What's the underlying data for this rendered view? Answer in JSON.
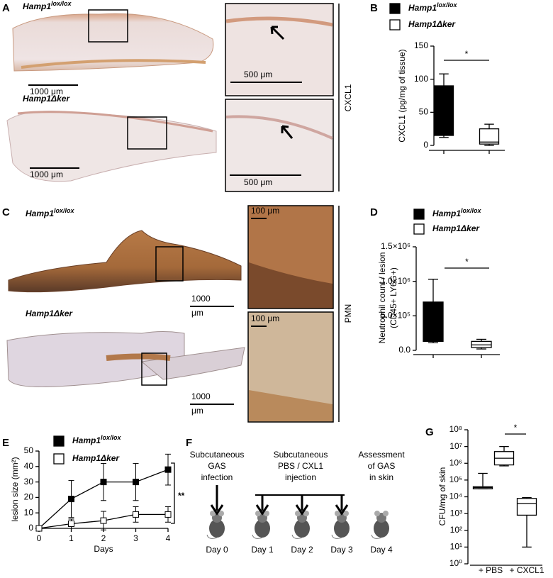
{
  "figure": {
    "panels": [
      "A",
      "B",
      "C",
      "D",
      "E",
      "F",
      "G"
    ],
    "a": {
      "label_top": "Hamp1",
      "label_top_sup": "lox/lox",
      "label_bottom": "Hamp1Δker",
      "scale_top": "1000 μm",
      "scale_bottom": "1000 μm",
      "inset_scale_top": "500 μm",
      "inset_scale_bottom": "500 μm",
      "stain": "CXCL1"
    },
    "c": {
      "label_top": "Hamp1",
      "label_top_sup": "lox/lox",
      "label_bottom": "Hamp1Δker",
      "scale_top": [
        "1000",
        "μm"
      ],
      "scale_bottom": [
        "1000",
        "μm"
      ],
      "inset_scale_top": "100 μm",
      "inset_scale_bottom": "100 μm",
      "stain": "PMN"
    },
    "f": {
      "steps": [
        {
          "text": [
            "Subcutaneous",
            "GAS",
            "infection"
          ],
          "day": "Day 0"
        },
        {
          "text": [
            "Subcutaneous",
            "PBS / CXL1",
            "injection"
          ],
          "days": [
            "Day 1",
            "Day 2",
            "Day 3"
          ]
        },
        {
          "text": [
            "Assessment",
            "of GAS",
            "in skin"
          ],
          "day": "Day 4"
        }
      ]
    }
  },
  "chart_data": [
    {
      "type": "box",
      "ylabel": "CXCL1 (pg/mg of tissue)",
      "ylim": [
        0,
        150
      ],
      "yticks": [
        0,
        50,
        100,
        150
      ],
      "annotation": "*",
      "series": [
        {
          "name": "Hamp1",
          "name_sup": "lox/lox",
          "color": "#000000",
          "min": 12,
          "q1": 15,
          "median": 55,
          "q3": 90,
          "max": 108
        },
        {
          "name": "Hamp1Δker",
          "color": "#ffffff",
          "min": 0,
          "q1": 2,
          "median": 5,
          "q3": 25,
          "max": 32
        }
      ]
    },
    {
      "type": "box",
      "ylabel": [
        "Neutrophil count / lesion",
        "(CD45+ LY6G+)"
      ],
      "ylim": [
        0,
        1500000
      ],
      "yticks": [
        {
          "value": 0,
          "label": "0.0"
        },
        {
          "value": 500000,
          "label": "5.0×10⁵"
        },
        {
          "value": 1000000,
          "label": "1.0×10⁶"
        },
        {
          "value": 1500000,
          "label": "1.5×10⁶"
        }
      ],
      "annotation": "*",
      "series": [
        {
          "name": "Hamp1",
          "name_sup": "lox/lox",
          "color": "#000000",
          "min": 110000,
          "q1": 130000,
          "median": 300000,
          "q3": 700000,
          "max": 1030000
        },
        {
          "name": "Hamp1Δker",
          "color": "#ffffff",
          "min": 20000,
          "q1": 40000,
          "median": 80000,
          "q3": 130000,
          "max": 160000
        }
      ]
    },
    {
      "type": "line",
      "xlabel": "Days",
      "ylabel": "lesion size (mm²)",
      "xlim": [
        0,
        4
      ],
      "xticks": [
        0,
        1,
        2,
        3,
        4
      ],
      "ylim": [
        0,
        50
      ],
      "yticks": [
        0,
        10,
        20,
        30,
        40,
        50
      ],
      "annotation": "**",
      "x": [
        0,
        1,
        2,
        3,
        4
      ],
      "series": [
        {
          "name": "Hamp1",
          "name_sup": "lox/lox",
          "color": "#000000",
          "values": [
            0,
            19,
            30,
            30,
            38
          ],
          "errors": [
            0,
            12,
            12,
            12,
            10
          ]
        },
        {
          "name": "Hamp1Δker",
          "color": "#ffffff",
          "values": [
            0,
            3,
            5,
            9,
            9
          ],
          "errors": [
            0,
            3,
            6,
            5,
            5
          ]
        }
      ]
    },
    {
      "type": "box",
      "log": true,
      "ylabel": "CFU/mg of skin",
      "ylim": [
        1,
        100000000
      ],
      "yticks": [
        {
          "value": 1,
          "label": "10⁰"
        },
        {
          "value": 10,
          "label": "10¹"
        },
        {
          "value": 100,
          "label": "10²"
        },
        {
          "value": 1000,
          "label": "10³"
        },
        {
          "value": 10000,
          "label": "10⁴"
        },
        {
          "value": 100000,
          "label": "10⁵"
        },
        {
          "value": 1000000,
          "label": "10⁶"
        },
        {
          "value": 10000000,
          "label": "10⁷"
        },
        {
          "value": 100000000,
          "label": "10⁸"
        }
      ],
      "groups": [
        "+ PBS",
        "+ CXCL1"
      ],
      "annotation": "*",
      "series": [
        {
          "color": "#ffffff",
          "min": 30000,
          "q1": 30000,
          "median": 35000,
          "q3": 40000,
          "max": 250000
        },
        {
          "color": "#ffffff",
          "min": 700000,
          "q1": 800000,
          "median": 2000000,
          "q3": 5000000,
          "max": 10000000
        },
        {
          "color": "#ffffff",
          "min": 10,
          "q1": 800,
          "median": 4000,
          "q3": 8000,
          "max": 9000
        }
      ]
    }
  ]
}
